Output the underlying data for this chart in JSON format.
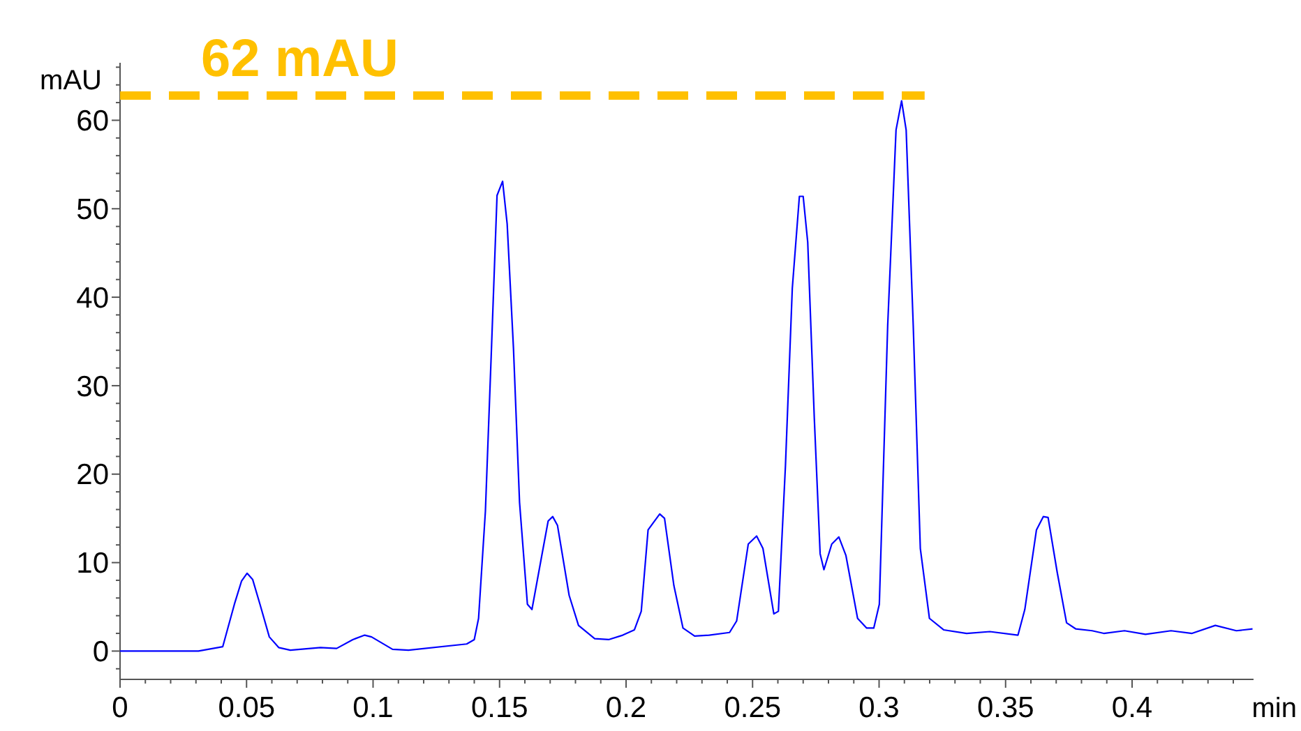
{
  "chart_data": {
    "type": "line",
    "xlabel": "min",
    "ylabel": "mAU",
    "xlim": [
      0,
      0.448
    ],
    "ylim": [
      -3.2,
      66.5
    ],
    "xticks": [
      0,
      {
        "value": 0.01,
        "label": null
      },
      {
        "value": 0.02,
        "label": null
      },
      {
        "value": 0.03,
        "label": null
      },
      {
        "value": 0.04,
        "label": null
      },
      0.05,
      {
        "value": 0.06,
        "label": null
      },
      {
        "value": 0.07,
        "label": null
      },
      {
        "value": 0.08,
        "label": null
      },
      {
        "value": 0.09,
        "label": null
      },
      0.1,
      {
        "value": 0.11,
        "label": null
      },
      {
        "value": 0.12,
        "label": null
      },
      {
        "value": 0.13,
        "label": null
      },
      {
        "value": 0.14,
        "label": null
      },
      0.15,
      {
        "value": 0.16,
        "label": null
      },
      {
        "value": 0.17,
        "label": null
      },
      {
        "value": 0.18,
        "label": null
      },
      {
        "value": 0.19,
        "label": null
      },
      0.2,
      {
        "value": 0.21,
        "label": null
      },
      {
        "value": 0.22,
        "label": null
      },
      {
        "value": 0.23,
        "label": null
      },
      {
        "value": 0.24,
        "label": null
      },
      0.25,
      {
        "value": 0.26,
        "label": null
      },
      {
        "value": 0.27,
        "label": null
      },
      {
        "value": 0.28,
        "label": null
      },
      {
        "value": 0.29,
        "label": null
      },
      0.3,
      {
        "value": 0.31,
        "label": null
      },
      {
        "value": 0.32,
        "label": null
      },
      {
        "value": 0.33,
        "label": null
      },
      {
        "value": 0.34,
        "label": null
      },
      0.35,
      {
        "value": 0.36,
        "label": null
      },
      {
        "value": 0.37,
        "label": null
      },
      {
        "value": 0.38,
        "label": null
      },
      {
        "value": 0.39,
        "label": null
      },
      0.4,
      {
        "value": 0.41,
        "label": null
      },
      {
        "value": 0.42,
        "label": null
      },
      {
        "value": 0.43,
        "label": null
      },
      {
        "value": 0.44,
        "label": null
      }
    ],
    "yticks": [
      {
        "value": -2,
        "label": null
      },
      0,
      {
        "value": 2,
        "label": null
      },
      {
        "value": 4,
        "label": null
      },
      {
        "value": 6,
        "label": null
      },
      {
        "value": 8,
        "label": null
      },
      10,
      {
        "value": 12,
        "label": null
      },
      {
        "value": 14,
        "label": null
      },
      {
        "value": 16,
        "label": null
      },
      {
        "value": 18,
        "label": null
      },
      20,
      {
        "value": 22,
        "label": null
      },
      {
        "value": 24,
        "label": null
      },
      {
        "value": 26,
        "label": null
      },
      {
        "value": 28,
        "label": null
      },
      30,
      {
        "value": 32,
        "label": null
      },
      {
        "value": 34,
        "label": null
      },
      {
        "value": 36,
        "label": null
      },
      {
        "value": 38,
        "label": null
      },
      40,
      {
        "value": 42,
        "label": null
      },
      {
        "value": 44,
        "label": null
      },
      {
        "value": 46,
        "label": null
      },
      {
        "value": 48,
        "label": null
      },
      50,
      {
        "value": 52,
        "label": null
      },
      {
        "value": 54,
        "label": null
      },
      {
        "value": 56,
        "label": null
      },
      {
        "value": 58,
        "label": null
      },
      60,
      {
        "value": 62,
        "label": null
      },
      {
        "value": 64,
        "label": null
      },
      {
        "value": 66,
        "label": null
      }
    ],
    "marker": "none",
    "line_style": "solid",
    "series": [
      {
        "color": "#0000ff",
        "x": [
          0,
          0.031,
          0.0406,
          0.0452,
          0.048,
          0.0502,
          0.0524,
          0.0553,
          0.059,
          0.0627,
          0.0673,
          0.0792,
          0.0856,
          0.092,
          0.0967,
          0.0994,
          0.1077,
          0.114,
          0.137,
          0.14,
          0.1417,
          0.1444,
          0.1468,
          0.149,
          0.1512,
          0.153,
          0.1555,
          0.1579,
          0.161,
          0.1628,
          0.1665,
          0.1692,
          0.171,
          0.1729,
          0.1775,
          0.1812,
          0.1876,
          0.1931,
          0.1987,
          0.2033,
          0.206,
          0.2087,
          0.2133,
          0.2152,
          0.2189,
          0.2225,
          0.2271,
          0.2327,
          0.2409,
          0.2437,
          0.2483,
          0.2516,
          0.2541,
          0.2584,
          0.2602,
          0.263,
          0.2657,
          0.2685,
          0.27,
          0.2718,
          0.2744,
          0.2767,
          0.2782,
          0.2813,
          0.2841,
          0.2869,
          0.2915,
          0.2951,
          0.2979,
          0.3001,
          0.3034,
          0.3067,
          0.3089,
          0.3107,
          0.3135,
          0.3163,
          0.3199,
          0.3255,
          0.3346,
          0.3438,
          0.3549,
          0.3576,
          0.3622,
          0.3649,
          0.3668,
          0.3704,
          0.3741,
          0.3778,
          0.3842,
          0.3888,
          0.397,
          0.4053,
          0.4154,
          0.4237,
          0.4329,
          0.4412,
          0.4476
        ],
        "values": [
          0,
          0,
          0.5,
          5.3,
          7.9,
          8.8,
          8.1,
          5.3,
          1.6,
          0.4,
          0.1,
          0.4,
          0.3,
          1.3,
          1.8,
          1.6,
          0.2,
          0.1,
          0.8,
          1.3,
          3.7,
          15.8,
          34.2,
          51.5,
          53.1,
          48.3,
          34.2,
          16.8,
          5.3,
          4.7,
          10.5,
          14.7,
          15.2,
          14.2,
          6.3,
          2.9,
          1.4,
          1.3,
          1.8,
          2.4,
          4.5,
          13.7,
          15.5,
          15,
          7.4,
          2.6,
          1.7,
          1.8,
          2.1,
          3.4,
          12.1,
          13,
          11.6,
          4.2,
          4.5,
          21,
          41,
          51.4,
          51.4,
          46.2,
          26.3,
          11,
          9.2,
          12.1,
          12.9,
          10.8,
          3.7,
          2.6,
          2.6,
          5.3,
          36.8,
          58.9,
          62.2,
          58.9,
          36.8,
          11.6,
          3.7,
          2.4,
          2,
          2.2,
          1.8,
          4.7,
          13.7,
          15.2,
          15.1,
          8.9,
          3.2,
          2.5,
          2.3,
          2,
          2.3,
          1.9,
          2.3,
          2,
          2.9,
          2.3,
          2.5
        ]
      },
      {
        "name": "62 mAU",
        "color": "#ffc000",
        "line_style": "dashed",
        "x": [
          0,
          0.318
        ],
        "values": [
          62.8,
          62.8
        ]
      }
    ]
  }
}
